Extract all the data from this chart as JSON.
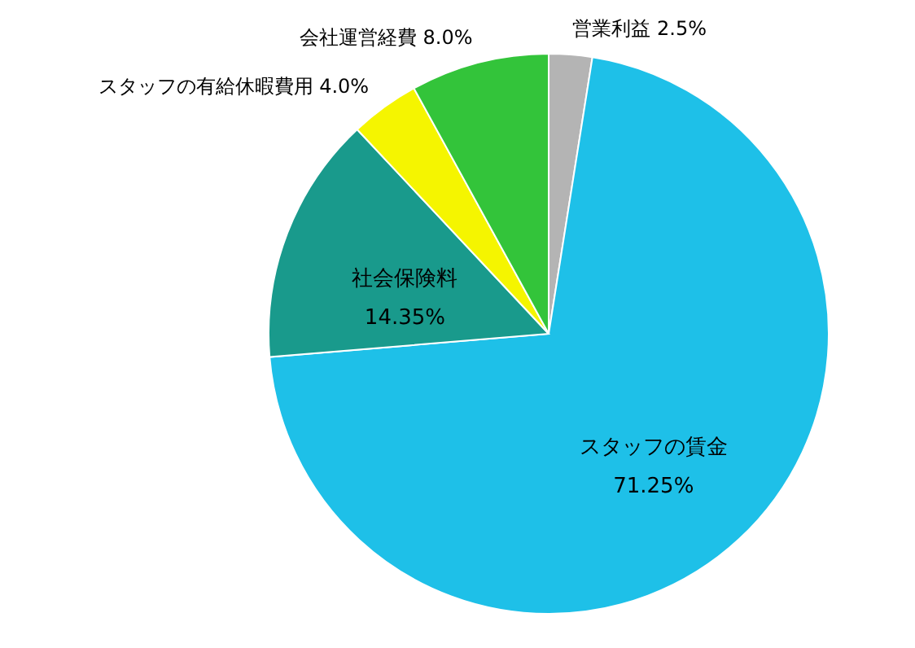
{
  "chart_data": {
    "type": "pie",
    "categories": [
      "営業利益",
      "スタッフの賃金",
      "社会保険料",
      "スタッフの有給休暇費用",
      "会社運営経費"
    ],
    "values": [
      2.5,
      71.25,
      14.35,
      4.0,
      8.0
    ],
    "value_labels": [
      "2.5%",
      "71.25%",
      "14.35%",
      "4.0%",
      "8.0%"
    ],
    "colors": [
      "#b4b4b4",
      "#1ec0e8",
      "#199a8c",
      "#f5f500",
      "#33c43a"
    ]
  }
}
